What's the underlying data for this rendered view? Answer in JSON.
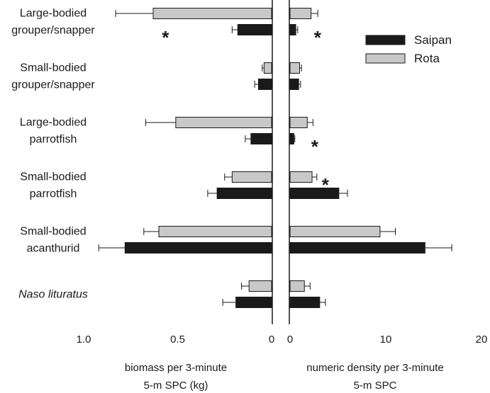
{
  "chart_data": {
    "type": "bar",
    "orientation": "horizontal",
    "colors": {
      "Saipan": "#1a1a1a",
      "Rota": "#c8c8c8"
    },
    "legend": {
      "position": "top-right",
      "entries": [
        "Saipan",
        "Rota"
      ]
    },
    "categories": [
      {
        "lines": [
          "Large-bodied",
          "grouper/snapper"
        ],
        "italic": false
      },
      {
        "lines": [
          "Small-bodied",
          "grouper/snapper"
        ],
        "italic": false
      },
      {
        "lines": [
          "Large-bodied",
          "parrotfish"
        ],
        "italic": false
      },
      {
        "lines": [
          "Small-bodied",
          "parrotfish"
        ],
        "italic": false
      },
      {
        "lines": [
          "Small-bodied",
          "acanthurid"
        ],
        "italic": false
      },
      {
        "lines": [
          "Naso lituratus"
        ],
        "italic": true
      }
    ],
    "panels": [
      {
        "name": "biomass",
        "xlabel_lines": [
          "biomass per 3-minute",
          "5-m SPC (kg)"
        ],
        "xlim": [
          0,
          1.0
        ],
        "reversed": true,
        "tick_values": [
          1.0,
          0.5,
          0
        ],
        "tick_labels": [
          "1.0",
          "0.5",
          "0"
        ],
        "series": [
          {
            "name": "Rota",
            "values": [
              0.63,
              0.04,
              0.51,
              0.21,
              0.6,
              0.12
            ],
            "errors": [
              0.2,
              0.01,
              0.16,
              0.04,
              0.08,
              0.04
            ]
          },
          {
            "name": "Saipan",
            "values": [
              0.18,
              0.07,
              0.11,
              0.29,
              0.78,
              0.19
            ],
            "errors": [
              0.03,
              0.02,
              0.03,
              0.05,
              0.14,
              0.07
            ]
          }
        ],
        "significant": [
          {
            "category": 0,
            "series": "Saipan",
            "mark": "*"
          }
        ]
      },
      {
        "name": "density",
        "xlabel_lines": [
          "numeric density per 3-minute",
          "5-m SPC"
        ],
        "xlim": [
          0,
          20
        ],
        "reversed": false,
        "tick_values": [
          0,
          10,
          20
        ],
        "tick_labels": [
          "0",
          "10",
          "20"
        ],
        "series": [
          {
            "name": "Rota",
            "values": [
              2.2,
              1.0,
              1.8,
              2.3,
              9.4,
              1.5
            ],
            "errors": [
              0.7,
              0.2,
              0.6,
              0.5,
              1.6,
              0.6
            ]
          },
          {
            "name": "Saipan",
            "values": [
              0.6,
              0.9,
              0.4,
              5.1,
              14.1,
              3.1
            ],
            "errors": [
              0.2,
              0.2,
              0.1,
              0.9,
              2.8,
              0.6
            ]
          }
        ],
        "significant": [
          {
            "category": 0,
            "series": "Saipan",
            "mark": "*"
          },
          {
            "category": 2,
            "series": "Saipan",
            "mark": "*"
          },
          {
            "category": 3,
            "series": "Rota",
            "mark": "*"
          }
        ]
      }
    ]
  }
}
